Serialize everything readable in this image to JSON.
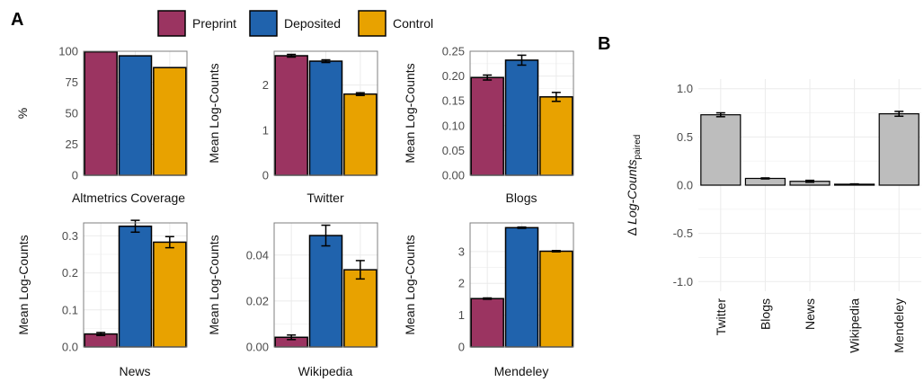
{
  "panel_labels": [
    "A",
    "B"
  ],
  "colors": {
    "Preprint": "#9b3461",
    "Deposited": "#2063ad",
    "Control": "#e8a200",
    "paired_bar": "#bdbdbd",
    "grid": "#ebebeb",
    "frame": "#7f7f7f"
  },
  "chart_data": [
    {
      "id": "altmetrics-coverage",
      "type": "bar",
      "panel": "A",
      "title": "Altmetrics Coverage",
      "xlabel": "",
      "ylabel": "%",
      "ylim": [
        0,
        100
      ],
      "yticks": [
        0,
        25,
        50,
        75,
        100
      ],
      "ytick_labels": [
        "0",
        "25",
        "50",
        "75",
        "100"
      ],
      "categories": [
        "Preprint",
        "Deposited",
        "Control"
      ],
      "values": [
        99.5,
        96.3,
        86.8
      ],
      "errors": [
        0,
        0,
        0
      ],
      "grid": true
    },
    {
      "id": "twitter",
      "type": "bar",
      "panel": "A",
      "title": "Twitter",
      "xlabel": "",
      "ylabel": "Mean Log-Counts",
      "ylim": [
        0,
        2.75
      ],
      "yticks": [
        0,
        1,
        2
      ],
      "ytick_labels": [
        "0",
        "1",
        "2"
      ],
      "categories": [
        "Preprint",
        "Deposited",
        "Control"
      ],
      "values": [
        2.65,
        2.53,
        1.8
      ],
      "errors": [
        0.03,
        0.03,
        0.03
      ],
      "grid": true
    },
    {
      "id": "blogs",
      "type": "bar",
      "panel": "A",
      "title": "Blogs",
      "xlabel": "",
      "ylabel": "Mean Log-Counts",
      "ylim": [
        0,
        0.25
      ],
      "yticks": [
        0,
        0.05,
        0.1,
        0.15,
        0.2,
        0.25
      ],
      "ytick_labels": [
        "0.00",
        "0.05",
        "0.10",
        "0.15",
        "0.20",
        "0.25"
      ],
      "categories": [
        "Preprint",
        "Deposited",
        "Control"
      ],
      "values": [
        0.197,
        0.232,
        0.158
      ],
      "errors": [
        0.005,
        0.01,
        0.009
      ],
      "grid": true
    },
    {
      "id": "news",
      "type": "bar",
      "panel": "A",
      "title": "News",
      "xlabel": "",
      "ylabel": "Mean Log-Counts",
      "ylim": [
        0,
        0.335
      ],
      "yticks": [
        0,
        0.1,
        0.2,
        0.3
      ],
      "ytick_labels": [
        "0.0",
        "0.1",
        "0.2",
        "0.3"
      ],
      "categories": [
        "Preprint",
        "Deposited",
        "Control"
      ],
      "values": [
        0.035,
        0.326,
        0.283
      ],
      "errors": [
        0.004,
        0.016,
        0.015
      ],
      "grid": true
    },
    {
      "id": "wikipedia",
      "type": "bar",
      "panel": "A",
      "title": "Wikipedia",
      "xlabel": "",
      "ylabel": "Mean Log-Counts",
      "ylim": [
        0,
        0.054
      ],
      "yticks": [
        0,
        0.02,
        0.04
      ],
      "ytick_labels": [
        "0.00",
        "0.02",
        "0.04"
      ],
      "categories": [
        "Preprint",
        "Deposited",
        "Control"
      ],
      "values": [
        0.0042,
        0.0485,
        0.0336
      ],
      "errors": [
        0.001,
        0.0045,
        0.004
      ],
      "grid": true
    },
    {
      "id": "mendeley",
      "type": "bar",
      "panel": "A",
      "title": "Mendeley",
      "xlabel": "",
      "ylabel": "Mean Log-Counts",
      "ylim": [
        0,
        3.9
      ],
      "yticks": [
        0,
        1,
        2,
        3
      ],
      "ytick_labels": [
        "0",
        "1",
        "2",
        "3"
      ],
      "categories": [
        "Preprint",
        "Deposited",
        "Control"
      ],
      "values": [
        1.52,
        3.75,
        3.01
      ],
      "errors": [
        0.02,
        0.02,
        0.02
      ],
      "grid": true
    },
    {
      "id": "paired",
      "type": "bar",
      "panel": "B",
      "title": "",
      "xlabel": "",
      "ylabel_prefix": "Δ ",
      "ylabel_main": "Log-Counts",
      "ylabel_sub": "paired",
      "ylim": [
        -1.1,
        1.1
      ],
      "yticks": [
        -1,
        -0.5,
        0,
        0.5,
        1
      ],
      "ytick_labels": [
        "-1.0",
        "-0.5",
        "0.0",
        "0.5",
        "1.0"
      ],
      "categories": [
        "Twitter",
        "Blogs",
        "News",
        "Wikipedia",
        "Mendeley"
      ],
      "values": [
        0.73,
        0.07,
        0.04,
        0.01,
        0.74
      ],
      "errors": [
        0.02,
        0.005,
        0.01,
        0.003,
        0.025
      ],
      "grid": true
    }
  ]
}
